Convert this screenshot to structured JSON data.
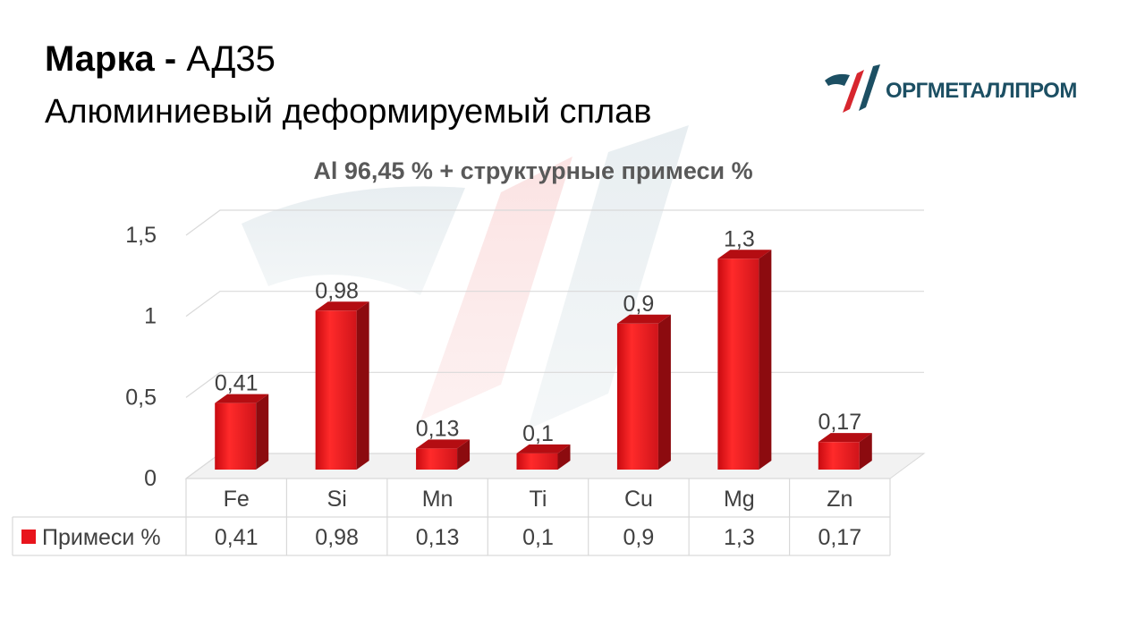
{
  "header": {
    "brand_label": "Марка",
    "brand_sep": " - ",
    "grade": "АД35",
    "subtitle": "Алюминиевый деформируемый сплав"
  },
  "logo": {
    "text": "ОРГМЕТАЛЛПРОМ",
    "color_dark": "#1c4f63",
    "color_red": "#d7262e"
  },
  "chart_data": {
    "type": "bar",
    "title": "Al 96,45 % + структурные примеси %",
    "categories": [
      "Fe",
      "Si",
      "Mn",
      "Ti",
      "Cu",
      "Mg",
      "Zn"
    ],
    "series": [
      {
        "name": "Примеси %",
        "values": [
          0.41,
          0.98,
          0.13,
          0.1,
          0.9,
          1.3,
          0.17
        ],
        "labels": [
          "0,41",
          "0,98",
          "0,13",
          "0,1",
          "0,9",
          "1,3",
          "0,17"
        ],
        "color": "#e8141c"
      }
    ],
    "yticks": [
      "0",
      "0,5",
      "1",
      "1,5"
    ],
    "ylim": [
      0,
      1.5
    ],
    "grid": true,
    "data_table": true
  }
}
